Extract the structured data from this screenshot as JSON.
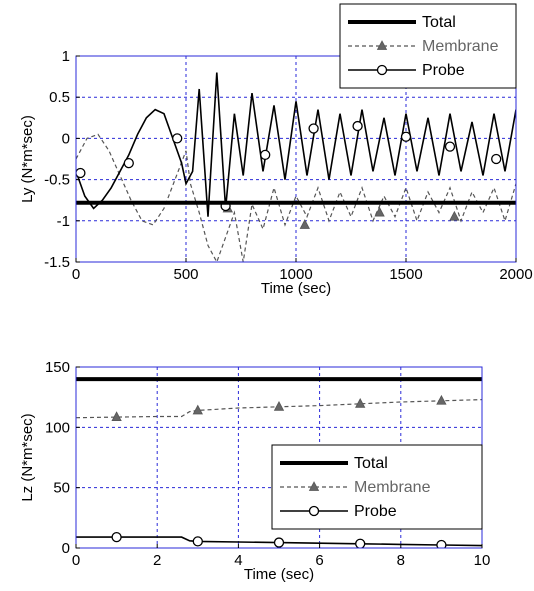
{
  "chart_data": [
    {
      "type": "line",
      "xlabel": "Time (sec)",
      "ylabel": "Ly (N*m*sec)",
      "xlim": [
        0,
        2000
      ],
      "ylim": [
        -1.5,
        1
      ],
      "xticks": [
        "0",
        "500",
        "1000",
        "1500",
        "2000"
      ],
      "yticks": [
        "-1.5",
        "-1",
        "-0.5",
        "0",
        "0.5",
        "1"
      ],
      "grid": true,
      "legend": "top-right",
      "series": [
        {
          "name": "Total",
          "style": "solid-thick",
          "color": "#000000",
          "x": [
            0,
            2000
          ],
          "values": [
            -0.78,
            -0.78
          ]
        },
        {
          "name": "Membrane",
          "style": "dashed-triangle",
          "color": "#555555",
          "x": [
            0,
            50,
            100,
            150,
            200,
            250,
            300,
            350,
            400,
            450,
            500,
            520,
            560,
            600,
            640,
            680,
            720,
            760,
            800,
            850,
            900,
            950,
            1000,
            1050,
            1100,
            1150,
            1200,
            1250,
            1300,
            1350,
            1400,
            1450,
            1500,
            1550,
            1600,
            1650,
            1700,
            1750,
            1800,
            1850,
            1900,
            1950,
            2000
          ],
          "values": [
            -0.25,
            0.0,
            0.05,
            -0.15,
            -0.45,
            -0.75,
            -1.0,
            -1.05,
            -0.85,
            -0.5,
            -0.15,
            -0.55,
            -0.9,
            -1.3,
            -1.5,
            -1.2,
            -0.9,
            -1.5,
            -0.8,
            -1.1,
            -0.6,
            -1.05,
            -0.7,
            -0.95,
            -0.6,
            -1.0,
            -0.65,
            -0.95,
            -0.6,
            -1.0,
            -0.7,
            -0.95,
            -0.6,
            -1.0,
            -0.65,
            -0.9,
            -0.6,
            -1.0,
            -0.65,
            -0.9,
            -0.6,
            -1.0,
            -0.55
          ],
          "marker_x": [
            690,
            1040,
            1380,
            1720
          ],
          "marker_values": [
            -0.85,
            -1.05,
            -0.9,
            -0.95
          ]
        },
        {
          "name": "Probe",
          "style": "solid-circle",
          "color": "#000000",
          "x": [
            0,
            40,
            80,
            120,
            160,
            200,
            240,
            280,
            320,
            360,
            400,
            440,
            480,
            500,
            530,
            560,
            600,
            640,
            680,
            720,
            760,
            800,
            850,
            900,
            950,
            1000,
            1050,
            1100,
            1150,
            1200,
            1250,
            1300,
            1350,
            1400,
            1450,
            1500,
            1550,
            1600,
            1650,
            1700,
            1750,
            1800,
            1850,
            1900,
            1950,
            2000
          ],
          "values": [
            -0.4,
            -0.7,
            -0.85,
            -0.75,
            -0.6,
            -0.4,
            -0.2,
            0.05,
            0.25,
            0.35,
            0.3,
            0.0,
            -0.3,
            -0.55,
            -0.4,
            0.6,
            -0.95,
            0.8,
            -0.85,
            0.3,
            -0.45,
            0.55,
            -0.4,
            0.4,
            -0.5,
            0.45,
            -0.45,
            0.35,
            -0.5,
            0.3,
            -0.45,
            0.35,
            -0.4,
            0.25,
            -0.45,
            0.3,
            -0.4,
            0.25,
            -0.45,
            0.3,
            -0.4,
            0.2,
            -0.45,
            0.3,
            -0.4,
            0.35
          ],
          "marker_x": [
            20,
            240,
            460,
            680,
            860,
            1080,
            1280,
            1500,
            1700,
            1910
          ],
          "marker_values": [
            -0.42,
            -0.3,
            0.0,
            -0.82,
            -0.2,
            0.12,
            0.15,
            0.02,
            -0.1,
            -0.25
          ]
        }
      ]
    },
    {
      "type": "line",
      "xlabel": "Time (sec)",
      "ylabel": "Lz (N*m*sec)",
      "xlim": [
        0,
        10
      ],
      "ylim": [
        0,
        150
      ],
      "xticks": [
        "0",
        "2",
        "4",
        "6",
        "8",
        "10"
      ],
      "yticks": [
        "0",
        "50",
        "100",
        "150"
      ],
      "grid": true,
      "legend": "bottom-right",
      "series": [
        {
          "name": "Total",
          "style": "solid-thick",
          "color": "#000000",
          "x": [
            0,
            10
          ],
          "values": [
            140,
            140
          ]
        },
        {
          "name": "Membrane",
          "style": "dashed-triangle",
          "color": "#555555",
          "x": [
            0,
            1,
            2,
            2.6,
            2.8,
            3,
            4,
            5,
            6,
            7,
            8,
            9,
            10
          ],
          "values": [
            108,
            108.5,
            109,
            109,
            113,
            114,
            116,
            117,
            118,
            119.5,
            121,
            122,
            123
          ],
          "marker_x": [
            1,
            3,
            5,
            7,
            9
          ],
          "marker_values": [
            108.5,
            114,
            117,
            119.5,
            122
          ]
        },
        {
          "name": "Probe",
          "style": "solid-circle",
          "color": "#000000",
          "x": [
            0,
            1,
            2,
            2.6,
            2.8,
            3,
            4,
            5,
            6,
            7,
            8,
            9,
            10
          ],
          "values": [
            9,
            9,
            9,
            9,
            6,
            5.5,
            5,
            4.5,
            4,
            3.5,
            3,
            2.5,
            2
          ],
          "marker_x": [
            1,
            3,
            5,
            7,
            9
          ],
          "marker_values": [
            9,
            5.5,
            4.5,
            3.5,
            2.5
          ]
        }
      ]
    }
  ]
}
